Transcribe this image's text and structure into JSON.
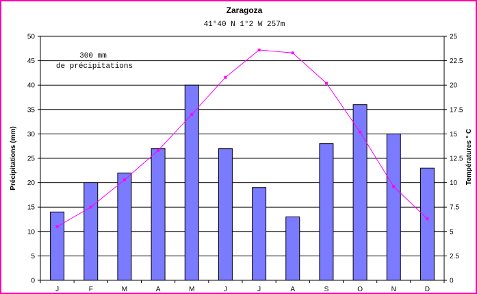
{
  "chart_data": {
    "type": "bar",
    "title": "Zaragoza",
    "subtitle": "41°40 N  1°2 W  257m",
    "annotation": [
      "300 mm",
      "de précipitations"
    ],
    "categories": [
      "J",
      "F",
      "M",
      "A",
      "M",
      "J",
      "J",
      "A",
      "S",
      "O",
      "N",
      "D"
    ],
    "series": [
      {
        "type": "bar",
        "axis": "left",
        "color": "#7b7bff",
        "values": [
          14,
          20,
          22,
          27,
          40,
          27,
          19,
          13,
          28,
          36,
          30,
          23
        ]
      },
      {
        "type": "line",
        "axis": "right",
        "color": "#ff00ff",
        "values": [
          5.5,
          7.5,
          10.3,
          13.3,
          17.0,
          20.8,
          23.6,
          23.3,
          20.2,
          15.2,
          9.6,
          6.3
        ]
      }
    ],
    "ylabel": "Précipitations (mm)",
    "y2label": "Températures ° C",
    "ylim": [
      0,
      50
    ],
    "y2lim": [
      0,
      25
    ],
    "yticks": [
      "0",
      "5",
      "10",
      "15",
      "20",
      "25",
      "30",
      "35",
      "40",
      "45",
      "50"
    ],
    "y2ticks": [
      "0",
      "2.5",
      "5",
      "7.5",
      "10",
      "12.5",
      "15",
      "17.5",
      "20",
      "22.5",
      "25"
    ],
    "grid": true,
    "legend": "none"
  }
}
